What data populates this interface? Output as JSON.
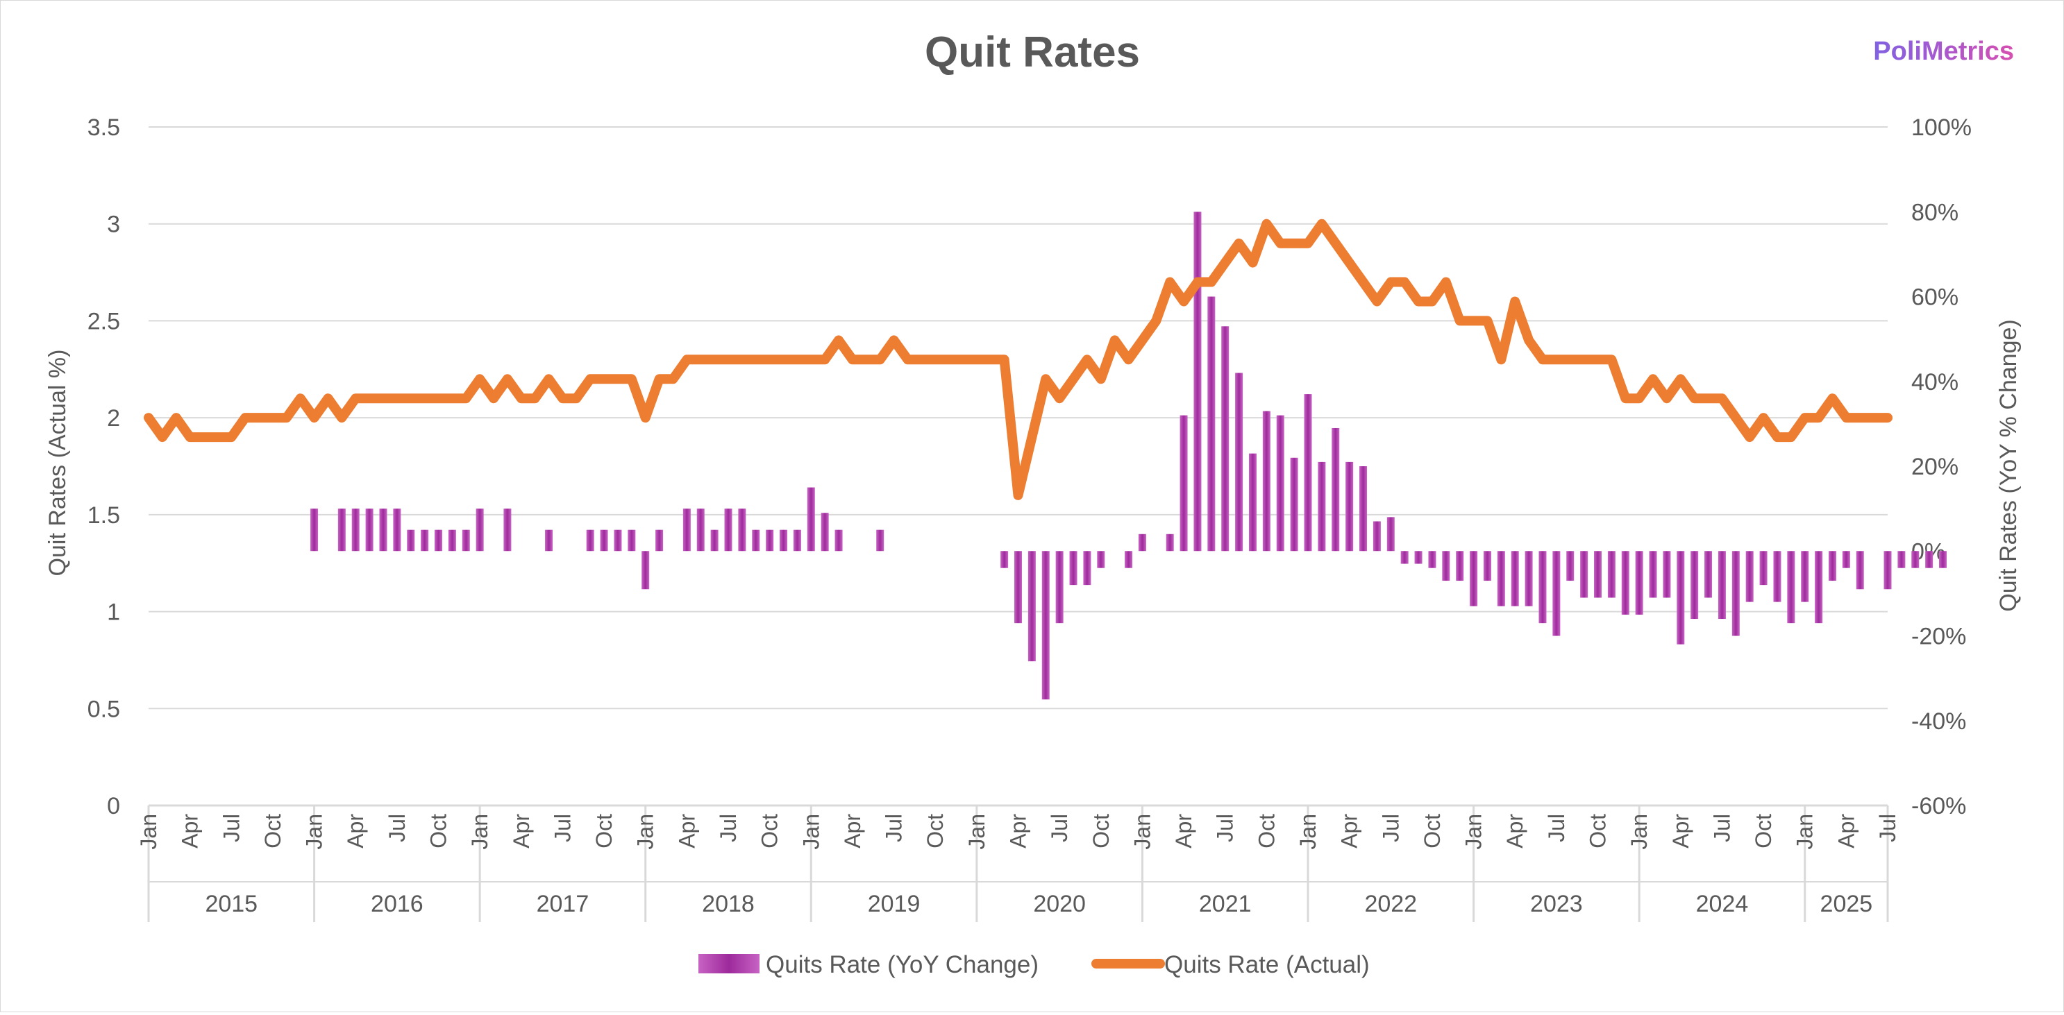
{
  "brand": "PoliMetrics",
  "colors": {
    "bars": "#9e2a9b",
    "line": "#ed7d31",
    "grid": "#d9d9d9",
    "text": "#595959"
  },
  "chart_data": {
    "type": "bar+line",
    "title": "Quit Rates",
    "y_left_label": "Quit Rates (Actual %)",
    "y_right_label": "Quit Rates (YoY % Change)",
    "y_left_range": [
      0,
      3.5
    ],
    "y_left_ticks": [
      "0",
      "0.5",
      "1",
      "1.5",
      "2",
      "2.5",
      "3",
      "3.5"
    ],
    "y_right_range": [
      -60,
      100
    ],
    "y_right_ticks": [
      "-60%",
      "-40%",
      "-20%",
      "0%",
      "20%",
      "40%",
      "60%",
      "80%",
      "100%"
    ],
    "month_labels": [
      "Jan",
      "Apr",
      "Jul",
      "Oct"
    ],
    "last_month_label": "Jul",
    "years": [
      "2015",
      "2016",
      "2017",
      "2018",
      "2019",
      "2020",
      "2021",
      "2022",
      "2023",
      "2024",
      "2025"
    ],
    "start": "2015-01",
    "end": "2025-07",
    "legend": [
      "Quits Rate (YoY Change)",
      "Quits Rate (Actual)"
    ],
    "series": [
      {
        "name": "Quits Rate (Actual)",
        "type": "line",
        "axis": "left",
        "values": [
          2.0,
          1.9,
          2.0,
          1.9,
          1.9,
          1.9,
          1.9,
          2.0,
          2.0,
          2.0,
          2.0,
          2.1,
          2.0,
          2.1,
          2.0,
          2.1,
          2.1,
          2.1,
          2.1,
          2.1,
          2.1,
          2.1,
          2.1,
          2.1,
          2.2,
          2.1,
          2.2,
          2.1,
          2.1,
          2.2,
          2.1,
          2.1,
          2.2,
          2.2,
          2.2,
          2.2,
          2.0,
          2.2,
          2.2,
          2.3,
          2.3,
          2.3,
          2.3,
          2.3,
          2.3,
          2.3,
          2.3,
          2.3,
          2.3,
          2.3,
          2.4,
          2.3,
          2.3,
          2.3,
          2.4,
          2.3,
          2.3,
          2.3,
          2.3,
          2.3,
          2.3,
          2.3,
          2.3,
          1.6,
          1.9,
          2.2,
          2.1,
          2.2,
          2.3,
          2.2,
          2.4,
          2.3,
          2.4,
          2.5,
          2.7,
          2.6,
          2.7,
          2.7,
          2.8,
          2.9,
          2.8,
          3.0,
          2.9,
          2.9,
          2.9,
          3.0,
          2.9,
          2.8,
          2.7,
          2.6,
          2.7,
          2.7,
          2.6,
          2.6,
          2.7,
          2.5,
          2.5,
          2.5,
          2.3,
          2.6,
          2.4,
          2.3,
          2.3,
          2.3,
          2.3,
          2.3,
          2.3,
          2.1,
          2.1,
          2.2,
          2.1,
          2.2,
          2.1,
          2.1,
          2.1,
          2.0,
          1.9,
          2.0,
          1.9,
          1.9,
          2.0,
          2.0,
          2.1,
          2.0,
          2.0,
          2.0,
          2.0
        ]
      },
      {
        "name": "Quits Rate (YoY Change)",
        "type": "bar",
        "axis": "right",
        "unit": "%",
        "values": [
          0,
          0,
          0,
          0,
          0,
          0,
          0,
          0,
          0,
          0,
          0,
          0,
          10,
          0,
          10,
          10,
          10,
          10,
          10,
          5,
          5,
          5,
          5,
          5,
          10,
          0,
          10,
          0,
          0,
          5,
          0,
          0,
          5,
          5,
          5,
          5,
          -9,
          5,
          0,
          10,
          10,
          5,
          10,
          10,
          5,
          5,
          5,
          5,
          15,
          9,
          5,
          0,
          0,
          5,
          0,
          0,
          0,
          0,
          0,
          0,
          0,
          0,
          -4,
          -17,
          -26,
          -35,
          -17,
          -8,
          -8,
          -4,
          0,
          -4,
          4,
          0,
          4,
          32,
          80,
          60,
          53,
          42,
          23,
          33,
          32,
          22,
          37,
          21,
          29,
          21,
          20,
          7,
          8,
          -3,
          -3,
          -4,
          -7,
          -7,
          -13,
          -7,
          -13,
          -13,
          -13,
          -17,
          -20,
          -7,
          -11,
          -11,
          -11,
          -15,
          -15,
          -11,
          -11,
          -22,
          -16,
          -11,
          -16,
          -20,
          -12,
          -8,
          -12,
          -17,
          -12,
          -17,
          -7,
          -4,
          -9,
          0,
          -9,
          -4,
          -4,
          -4,
          -4
        ]
      }
    ]
  }
}
